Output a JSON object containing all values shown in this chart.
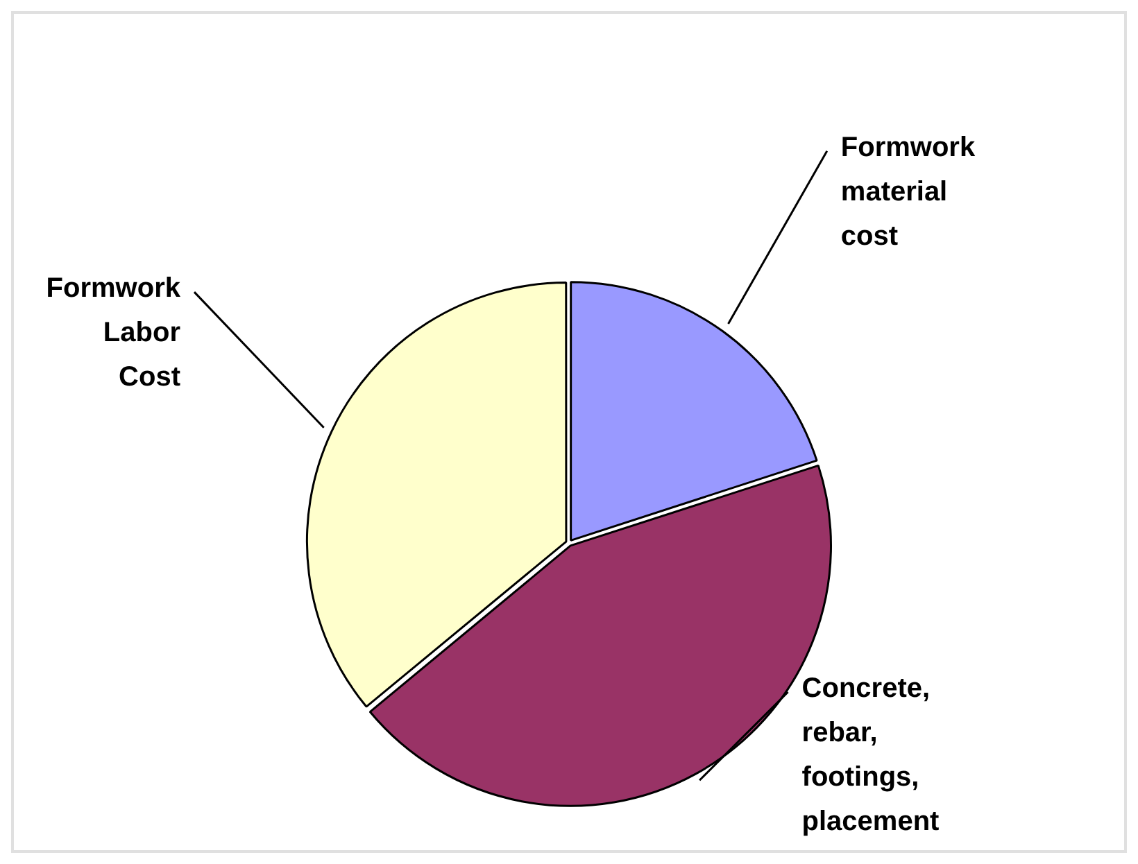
{
  "chart_data": {
    "type": "pie",
    "categories": [
      "Formwork material cost",
      "Concrete, rebar, footings, placement",
      "Formwork Labor Cost"
    ],
    "values": [
      20,
      44,
      36
    ],
    "colors": [
      "#9999ff",
      "#993366",
      "#ffffcc"
    ],
    "legend": false
  }
}
